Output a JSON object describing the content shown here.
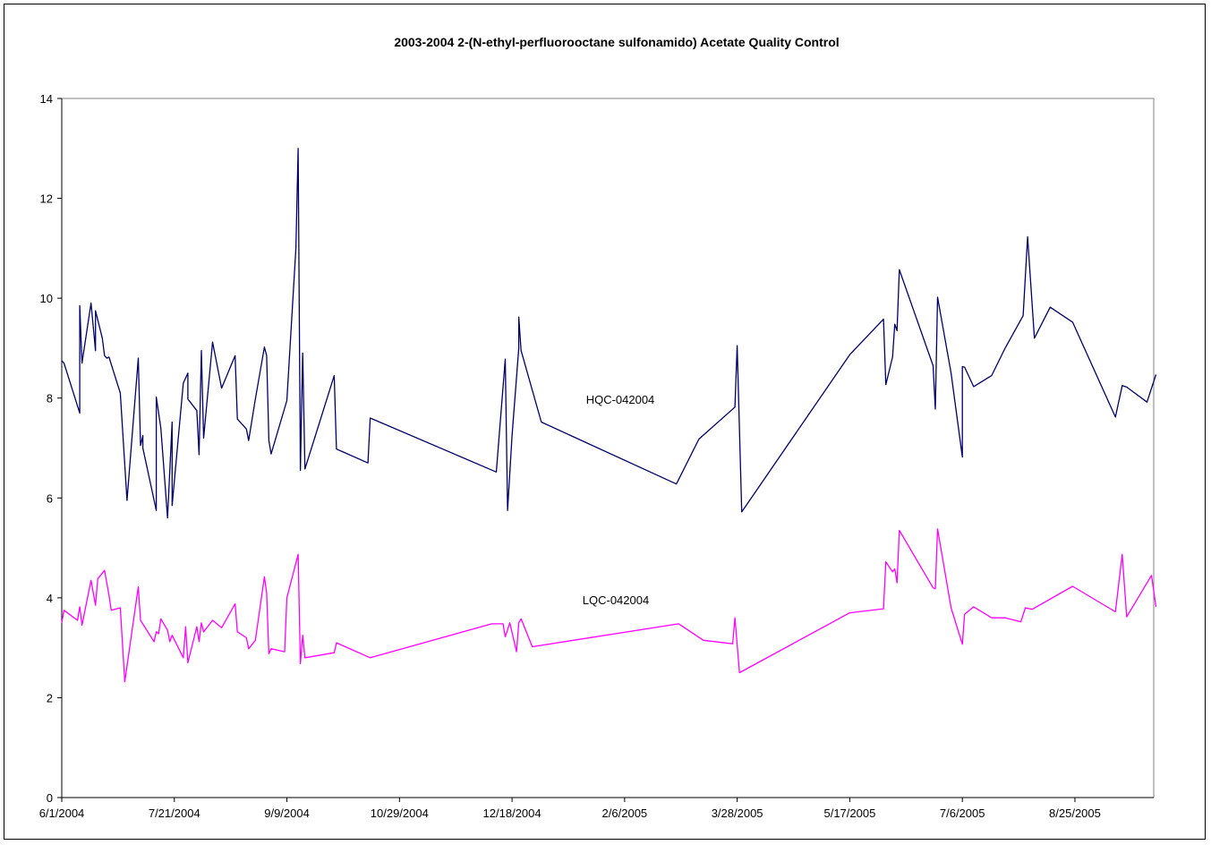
{
  "chart_data": {
    "type": "line",
    "title": "2003-2004 2-(N-ethyl-perfluorooctane sulfonamido) Acetate  Quality Control",
    "xlabel": "",
    "ylabel": "",
    "x_axis": {
      "type": "date",
      "range": [
        "6/1/2004",
        "9/29/2005"
      ],
      "tick_labels": [
        "6/1/2004",
        "7/21/2004",
        "9/9/2004",
        "10/29/2004",
        "12/18/2004",
        "2/6/2005",
        "3/28/2005",
        "5/17/2005",
        "7/6/2005",
        "8/25/2005"
      ]
    },
    "y_axis": {
      "range": [
        0,
        14
      ],
      "tick_labels": [
        "0",
        "2",
        "4",
        "6",
        "8",
        "10",
        "12",
        "14"
      ]
    },
    "grid": false,
    "legend": "none",
    "series": [
      {
        "name": "HQC-042004",
        "color": "#000066",
        "points": [
          [
            "6/1/2004",
            8.75
          ],
          [
            "6/2/2004",
            8.7
          ],
          [
            "6/9/2004",
            7.7
          ],
          [
            "6/9/2004",
            9.85
          ],
          [
            "6/10/2004",
            8.7
          ],
          [
            "6/14/2004",
            9.9
          ],
          [
            "6/16/2004",
            8.95
          ],
          [
            "6/16/2004",
            9.75
          ],
          [
            "6/19/2004",
            9.2
          ],
          [
            "6/20/2004",
            8.85
          ],
          [
            "6/21/2004",
            8.8
          ],
          [
            "6/22/2004",
            8.82
          ],
          [
            "6/27/2004",
            8.1
          ],
          [
            "6/30/2004",
            5.95
          ],
          [
            "7/5/2004",
            8.8
          ],
          [
            "7/6/2004",
            7.05
          ],
          [
            "7/7/2004",
            7.25
          ],
          [
            "7/7/2004",
            7.0
          ],
          [
            "7/13/2004",
            5.75
          ],
          [
            "7/13/2004",
            8.02
          ],
          [
            "7/15/2004",
            7.4
          ],
          [
            "7/18/2004",
            5.6
          ],
          [
            "7/20/2004",
            7.52
          ],
          [
            "7/20/2004",
            5.85
          ],
          [
            "7/25/2004",
            8.3
          ],
          [
            "7/27/2004",
            8.5
          ],
          [
            "7/27/2004",
            7.98
          ],
          [
            "7/31/2004",
            7.75
          ],
          [
            "8/1/2004",
            6.87
          ],
          [
            "8/2/2004",
            8.95
          ],
          [
            "8/3/2004",
            7.2
          ],
          [
            "8/7/2004",
            9.12
          ],
          [
            "8/11/2004",
            8.2
          ],
          [
            "8/17/2004",
            8.85
          ],
          [
            "8/18/2004",
            7.58
          ],
          [
            "8/22/2004",
            7.38
          ],
          [
            "8/23/2004",
            7.15
          ],
          [
            "8/26/2004",
            7.98
          ],
          [
            "8/30/2004",
            9.02
          ],
          [
            "8/31/2004",
            8.85
          ],
          [
            "9/1/2004",
            7.15
          ],
          [
            "9/2/2004",
            6.88
          ],
          [
            "9/9/2004",
            7.95
          ],
          [
            "9/13/2004",
            11.0
          ],
          [
            "9/14/2004",
            13.0
          ],
          [
            "9/15/2004",
            6.55
          ],
          [
            "9/16/2004",
            8.9
          ],
          [
            "9/17/2004",
            6.58
          ],
          [
            "9/30/2004",
            8.45
          ],
          [
            "10/1/2004",
            6.98
          ],
          [
            "10/15/2004",
            6.7
          ],
          [
            "10/16/2004",
            7.6
          ],
          [
            "12/11/2004",
            6.52
          ],
          [
            "12/15/2004",
            8.78
          ],
          [
            "12/16/2004",
            5.75
          ],
          [
            "12/18/2004",
            7.25
          ],
          [
            "12/21/2004",
            9.0
          ],
          [
            "12/21/2004",
            9.62
          ],
          [
            "12/22/2004",
            8.95
          ],
          [
            "12/31/2004",
            7.52
          ],
          [
            "3/1/2005",
            6.28
          ],
          [
            "3/11/2005",
            7.18
          ],
          [
            "3/27/2005",
            7.82
          ],
          [
            "3/28/2005",
            9.05
          ],
          [
            "3/30/2005",
            5.72
          ],
          [
            "5/17/2005",
            8.87
          ],
          [
            "6/1/2005",
            9.58
          ],
          [
            "6/2/2005",
            8.27
          ],
          [
            "6/5/2005",
            8.82
          ],
          [
            "6/6/2005",
            9.48
          ],
          [
            "6/7/2005",
            9.35
          ],
          [
            "6/8/2005",
            10.57
          ],
          [
            "6/23/2005",
            8.65
          ],
          [
            "6/24/2005",
            7.78
          ],
          [
            "6/25/2005",
            10.02
          ],
          [
            "7/1/2005",
            8.5
          ],
          [
            "7/6/2005",
            6.82
          ],
          [
            "7/6/2005",
            8.63
          ],
          [
            "7/7/2005",
            8.62
          ],
          [
            "7/11/2005",
            8.23
          ],
          [
            "7/19/2005",
            8.45
          ],
          [
            "7/25/2005",
            9.0
          ],
          [
            "8/2/2005",
            9.65
          ],
          [
            "8/4/2005",
            11.23
          ],
          [
            "8/7/2005",
            9.2
          ],
          [
            "8/14/2005",
            9.82
          ],
          [
            "8/24/2005",
            9.52
          ],
          [
            "9/12/2005",
            7.62
          ],
          [
            "9/15/2005",
            8.25
          ],
          [
            "9/17/2005",
            8.22
          ],
          [
            "9/26/2005",
            7.92
          ],
          [
            "9/30/2005",
            8.47
          ]
        ]
      },
      {
        "name": "LQC-042004",
        "color": "#ff00ff",
        "points": [
          [
            "6/1/2004",
            3.5
          ],
          [
            "6/2/2004",
            3.75
          ],
          [
            "6/8/2004",
            3.55
          ],
          [
            "6/9/2004",
            3.82
          ],
          [
            "6/10/2004",
            3.45
          ],
          [
            "6/14/2004",
            4.35
          ],
          [
            "6/16/2004",
            3.85
          ],
          [
            "6/17/2004",
            4.38
          ],
          [
            "6/20/2004",
            4.55
          ],
          [
            "6/22/2004",
            4.05
          ],
          [
            "6/23/2004",
            3.75
          ],
          [
            "6/27/2004",
            3.8
          ],
          [
            "6/29/2004",
            2.32
          ],
          [
            "7/5/2004",
            4.22
          ],
          [
            "7/6/2004",
            3.55
          ],
          [
            "7/12/2004",
            3.12
          ],
          [
            "7/13/2004",
            3.32
          ],
          [
            "7/14/2004",
            3.28
          ],
          [
            "7/15/2004",
            3.58
          ],
          [
            "7/18/2004",
            3.35
          ],
          [
            "7/19/2004",
            3.12
          ],
          [
            "7/20/2004",
            3.25
          ],
          [
            "7/25/2004",
            2.8
          ],
          [
            "7/26/2004",
            3.42
          ],
          [
            "7/27/2004",
            2.7
          ],
          [
            "7/31/2004",
            3.42
          ],
          [
            "8/1/2004",
            3.12
          ],
          [
            "8/2/2004",
            3.5
          ],
          [
            "8/3/2004",
            3.32
          ],
          [
            "8/7/2004",
            3.55
          ],
          [
            "8/11/2004",
            3.4
          ],
          [
            "8/17/2004",
            3.88
          ],
          [
            "8/18/2004",
            3.32
          ],
          [
            "8/22/2004",
            3.2
          ],
          [
            "8/23/2004",
            2.98
          ],
          [
            "8/26/2004",
            3.15
          ],
          [
            "8/30/2004",
            4.42
          ],
          [
            "8/31/2004",
            4.1
          ],
          [
            "9/1/2004",
            2.88
          ],
          [
            "9/2/2004",
            2.98
          ],
          [
            "9/8/2004",
            2.92
          ],
          [
            "9/9/2004",
            4.0
          ],
          [
            "9/14/2004",
            4.87
          ],
          [
            "9/15/2004",
            2.68
          ],
          [
            "9/16/2004",
            3.25
          ],
          [
            "9/17/2004",
            2.8
          ],
          [
            "9/30/2004",
            2.9
          ],
          [
            "10/1/2004",
            3.1
          ],
          [
            "10/16/2004",
            2.8
          ],
          [
            "12/9/2004",
            3.48
          ],
          [
            "12/14/2004",
            3.48
          ],
          [
            "12/15/2004",
            3.22
          ],
          [
            "12/17/2004",
            3.5
          ],
          [
            "12/20/2004",
            2.92
          ],
          [
            "12/21/2004",
            3.5
          ],
          [
            "12/22/2004",
            3.58
          ],
          [
            "12/27/2004",
            3.02
          ],
          [
            "3/2/2005",
            3.48
          ],
          [
            "3/13/2005",
            3.15
          ],
          [
            "3/26/2005",
            3.08
          ],
          [
            "3/27/2005",
            3.6
          ],
          [
            "3/29/2005",
            2.5
          ],
          [
            "5/17/2005",
            3.7
          ],
          [
            "6/1/2005",
            3.78
          ],
          [
            "6/2/2005",
            4.72
          ],
          [
            "6/5/2005",
            4.52
          ],
          [
            "6/6/2005",
            4.58
          ],
          [
            "6/7/2005",
            4.3
          ],
          [
            "6/8/2005",
            5.35
          ],
          [
            "6/23/2005",
            4.2
          ],
          [
            "6/24/2005",
            4.18
          ],
          [
            "6/25/2005",
            5.38
          ],
          [
            "7/1/2005",
            3.8
          ],
          [
            "7/6/2005",
            3.07
          ],
          [
            "7/7/2005",
            3.67
          ],
          [
            "7/11/2005",
            3.82
          ],
          [
            "7/19/2005",
            3.6
          ],
          [
            "7/25/2005",
            3.6
          ],
          [
            "8/1/2005",
            3.52
          ],
          [
            "8/3/2005",
            3.8
          ],
          [
            "8/6/2005",
            3.77
          ],
          [
            "8/24/2005",
            4.23
          ],
          [
            "9/12/2005",
            3.72
          ],
          [
            "9/15/2005",
            4.87
          ],
          [
            "9/17/2005",
            3.62
          ],
          [
            "9/28/2005",
            4.45
          ],
          [
            "9/30/2005",
            3.82
          ]
        ]
      }
    ],
    "annotations": [
      {
        "text": "HQC-042004",
        "series": "HQC-042004"
      },
      {
        "text": "LQC-042004",
        "series": "LQC-042004"
      }
    ]
  }
}
